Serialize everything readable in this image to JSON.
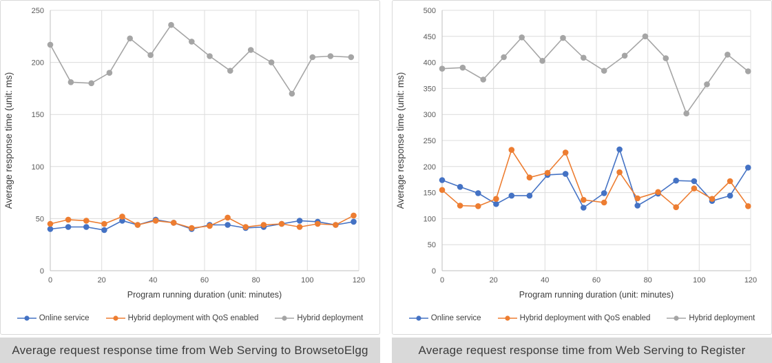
{
  "page": {
    "background": "#ffffff"
  },
  "colors": {
    "series_blue": "#4472C4",
    "series_orange": "#ED7D31",
    "series_gray": "#A5A5A5",
    "gridline": "#dcdcdc",
    "axis_line": "#bfbfbf",
    "tick_text": "#595959",
    "caption_bar": "#d9d9d9"
  },
  "charts": [
    {
      "caption": "Average request response time from Web Serving to BrowsetoElgg",
      "chart_data": {
        "type": "line",
        "title": "",
        "xlabel": "Program running duration (unit: minutes)",
        "ylabel": "Average response time (unit: ms)",
        "xlim": [
          0,
          120
        ],
        "ylim": [
          0,
          250
        ],
        "xticks": [
          0,
          20,
          40,
          60,
          80,
          100,
          120
        ],
        "yticks": [
          0,
          50,
          100,
          150,
          200,
          250
        ],
        "grid": true,
        "legend_position": "bottom",
        "series": [
          {
            "name": "Online service",
            "color": "#4472C4",
            "x": [
              0,
              7,
              14,
              21,
              28,
              34,
              41,
              48,
              55,
              62,
              69,
              76,
              83,
              90,
              97,
              104,
              111,
              118
            ],
            "values": [
              40,
              42,
              42,
              39,
              48,
              44,
              49,
              46,
              40,
              44,
              44,
              41,
              42,
              45,
              48,
              47,
              44,
              47
            ]
          },
          {
            "name": "Hybrid deployment with QoS enabled",
            "color": "#ED7D31",
            "x": [
              0,
              7,
              14,
              21,
              28,
              34,
              41,
              48,
              55,
              62,
              69,
              76,
              83,
              90,
              97,
              104,
              111,
              118
            ],
            "values": [
              45,
              49,
              48,
              45,
              52,
              44,
              48,
              46,
              41,
              43,
              51,
              42,
              44,
              45,
              42,
              45,
              44,
              53
            ]
          },
          {
            "name": "Hybrid deployment",
            "color": "#A5A5A5",
            "x": [
              0,
              8,
              16,
              23,
              31,
              39,
              47,
              55,
              62,
              70,
              78,
              86,
              94,
              102,
              109,
              117
            ],
            "values": [
              217,
              181,
              180,
              190,
              223,
              207,
              236,
              220,
              206,
              192,
              212,
              200,
              170,
              205,
              206,
              205
            ]
          }
        ]
      }
    },
    {
      "caption": "Average request response time from Web Serving to Register",
      "chart_data": {
        "type": "line",
        "title": "",
        "xlabel": "Program running duration (unit: minutes)",
        "ylabel": "Average response time (unit: ms)",
        "xlim": [
          0,
          120
        ],
        "ylim": [
          0,
          500
        ],
        "xticks": [
          0,
          20,
          40,
          60,
          80,
          100,
          120
        ],
        "yticks": [
          0,
          50,
          100,
          150,
          200,
          250,
          300,
          350,
          400,
          450,
          500
        ],
        "grid": true,
        "legend_position": "bottom",
        "series": [
          {
            "name": "Online service",
            "color": "#4472C4",
            "x": [
              0,
              7,
              14,
              21,
              27,
              34,
              41,
              48,
              55,
              63,
              69,
              76,
              84,
              91,
              98,
              105,
              112,
              119
            ],
            "values": [
              174,
              161,
              149,
              128,
              144,
              144,
              184,
              186,
              121,
              149,
              233,
              125,
              148,
              173,
              172,
              134,
              144,
              198
            ]
          },
          {
            "name": "Hybrid deployment with QoS enabled",
            "color": "#ED7D31",
            "x": [
              0,
              7,
              14,
              21,
              27,
              34,
              41,
              48,
              55,
              63,
              69,
              76,
              84,
              91,
              98,
              105,
              112,
              119
            ],
            "values": [
              155,
              125,
              124,
              138,
              232,
              179,
              188,
              227,
              136,
              131,
              189,
              139,
              151,
              122,
              158,
              138,
              172,
              124
            ]
          },
          {
            "name": "Hybrid deployment",
            "color": "#A5A5A5",
            "x": [
              0,
              8,
              16,
              24,
              31,
              39,
              47,
              55,
              63,
              71,
              79,
              87,
              95,
              103,
              111,
              119
            ],
            "values": [
              388,
              390,
              367,
              410,
              448,
              403,
              447,
              409,
              384,
              413,
              450,
              408,
              302,
              358,
              415,
              383
            ]
          }
        ]
      }
    }
  ]
}
